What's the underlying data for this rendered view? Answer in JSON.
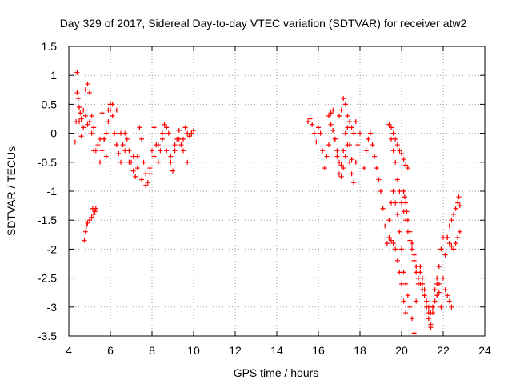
{
  "chart_data": {
    "type": "scatter",
    "title": "Day 329 of 2017, Sidereal Day-to-day VTEC variation (SDTVAR) for receiver atw2",
    "xlabel": "GPS time / hours",
    "ylabel": "SDTVAR / TECUs",
    "xlim": [
      4,
      24
    ],
    "ylim": [
      -3.5,
      1.5
    ],
    "xticks": [
      4,
      6,
      8,
      10,
      12,
      14,
      16,
      18,
      20,
      22,
      24
    ],
    "yticks": [
      -3.5,
      -3,
      -2.5,
      -2,
      -1.5,
      -1,
      -0.5,
      0,
      0.5,
      1,
      1.5
    ],
    "xtick_labels": [
      "4",
      "6",
      "8",
      "10",
      "12",
      "14",
      "16",
      "18",
      "20",
      "22",
      "24"
    ],
    "ytick_labels": [
      "-3.5",
      "-3",
      "-2.5",
      "-2",
      "-1.5",
      "-1",
      "-0.5",
      "0",
      "0.5",
      "1",
      "1.5"
    ],
    "grid": true,
    "marker": "+",
    "color": "#ff0000",
    "series": [
      {
        "name": "SDTVAR",
        "x": [
          4.3,
          4.35,
          4.4,
          4.45,
          4.5,
          4.55,
          4.6,
          4.7,
          4.8,
          4.9,
          5.0,
          5.1,
          5.2,
          5.3,
          5.4,
          5.5,
          5.6,
          5.7,
          5.8,
          5.9,
          6.0,
          6.1,
          6.2,
          6.3,
          6.4,
          6.5,
          6.6,
          6.7,
          6.8,
          6.9,
          7.0,
          7.1,
          7.2,
          7.3,
          7.4,
          7.5,
          7.6,
          7.7,
          7.8,
          7.9,
          8.0,
          8.1,
          8.2,
          8.3,
          8.4,
          8.5,
          8.6,
          8.7,
          8.8,
          8.9,
          9.0,
          9.1,
          9.2,
          9.3,
          9.4,
          9.5,
          9.6,
          9.7,
          9.8,
          9.9,
          10.0,
          4.4,
          4.5,
          4.6,
          4.7,
          4.8,
          4.9,
          5.0,
          5.1,
          5.2,
          4.75,
          4.8,
          4.85,
          4.9,
          5.0,
          5.1,
          5.15,
          5.2,
          5.25,
          5.3,
          5.5,
          5.6,
          5.7,
          5.8,
          5.9,
          6.0,
          6.1,
          6.3,
          6.5,
          6.7,
          6.9,
          7.1,
          7.3,
          7.5,
          7.7,
          7.9,
          8.1,
          8.3,
          8.5,
          8.7,
          8.9,
          9.1,
          9.3,
          9.5,
          9.7,
          9.9,
          15.5,
          15.6,
          15.7,
          15.8,
          15.9,
          16.0,
          16.1,
          16.2,
          16.3,
          16.4,
          16.5,
          16.6,
          16.7,
          16.8,
          16.9,
          17.0,
          17.1,
          17.2,
          17.3,
          17.4,
          17.5,
          17.6,
          17.7,
          17.8,
          17.9,
          18.0,
          17.0,
          17.1,
          17.2,
          17.3,
          17.4,
          17.5,
          17.6,
          17.7,
          17.8,
          16.5,
          16.6,
          16.7,
          16.8,
          16.9,
          17.0,
          17.1,
          17.2,
          17.3,
          17.4,
          17.5,
          17.6,
          17.7,
          18.2,
          18.3,
          18.4,
          18.5,
          18.6,
          18.7,
          18.8,
          18.9,
          19.0,
          19.1,
          19.2,
          19.3,
          19.4,
          19.5,
          19.6,
          19.7,
          19.8,
          19.9,
          20.0,
          20.1,
          20.2,
          20.3,
          20.4,
          20.5,
          20.6,
          20.7,
          20.8,
          20.9,
          21.0,
          21.1,
          21.2,
          21.3,
          21.4,
          21.5,
          21.6,
          21.7,
          21.8,
          21.9,
          19.4,
          19.5,
          19.6,
          19.7,
          19.8,
          19.9,
          20.0,
          20.1,
          20.2,
          20.3,
          19.5,
          19.6,
          19.7,
          19.8,
          19.9,
          20.0,
          20.1,
          20.2,
          20.3,
          20.4,
          20.5,
          20.6,
          20.7,
          20.8,
          20.9,
          21.0,
          21.1,
          21.2,
          21.3,
          21.4,
          21.5,
          21.6,
          21.7,
          21.8,
          19.4,
          19.5,
          19.6,
          19.7,
          19.8,
          19.9,
          20.0,
          20.1,
          20.2,
          20.1,
          20.15,
          20.2,
          20.25,
          20.3,
          20.4,
          20.5,
          20.6,
          20.7,
          20.8,
          20.9,
          21.0,
          21.1,
          21.2,
          21.3,
          21.4,
          21.5,
          21.6,
          21.7,
          21.8,
          21.9,
          22.0,
          22.0,
          22.1,
          22.2,
          22.3,
          22.4,
          22.5,
          22.6,
          22.7,
          22.75,
          22.8,
          22.2,
          22.3,
          22.4,
          22.5,
          22.6,
          22.7,
          22.8,
          22.1,
          22.2,
          22.3,
          22.4
        ],
        "y": [
          -0.15,
          0.2,
          1.05,
          0.6,
          0.45,
          0.35,
          0.25,
          0.4,
          0.75,
          0.85,
          0.7,
          0.3,
          0.1,
          -0.3,
          -0.2,
          -0.1,
          0.35,
          -0.1,
          -0.4,
          0.4,
          0.5,
          0.3,
          0.0,
          -0.2,
          -0.35,
          -0.5,
          -0.2,
          0.0,
          -0.1,
          -0.3,
          -0.5,
          -0.65,
          -0.75,
          -0.4,
          0.1,
          -0.1,
          -0.5,
          -0.7,
          -0.85,
          -0.7,
          -0.3,
          0.1,
          -0.2,
          -0.5,
          -0.3,
          0.0,
          0.15,
          0.1,
          0.0,
          -0.4,
          -0.65,
          -0.3,
          -0.1,
          0.05,
          -0.2,
          -0.1,
          0.1,
          0.0,
          -0.05,
          0.0,
          0.05,
          0.7,
          0.2,
          -0.05,
          0.1,
          0.3,
          0.15,
          0.2,
          0.0,
          -0.3,
          -1.85,
          -1.7,
          -1.6,
          -1.55,
          -1.5,
          -1.45,
          -1.3,
          -1.4,
          -1.35,
          -1.3,
          -0.5,
          -0.3,
          -0.1,
          0.0,
          0.2,
          0.4,
          0.5,
          0.4,
          0.0,
          -0.3,
          -0.5,
          -0.4,
          -0.6,
          -0.8,
          -0.9,
          -0.6,
          -0.4,
          -0.2,
          -0.1,
          -0.3,
          -0.5,
          -0.2,
          -0.1,
          -0.3,
          -0.5,
          0.0,
          0.2,
          0.25,
          0.15,
          0.0,
          -0.15,
          0.1,
          0.0,
          -0.3,
          -0.6,
          -0.4,
          -0.2,
          0.15,
          0.05,
          -0.1,
          -0.4,
          -0.7,
          -0.55,
          -0.3,
          0.0,
          0.1,
          -0.2,
          -0.45,
          -0.85,
          -0.5,
          -0.2,
          0.0,
          0.3,
          0.4,
          0.6,
          0.5,
          0.3,
          0.2,
          0.1,
          0.0,
          0.2,
          0.3,
          0.35,
          0.4,
          -0.1,
          -0.3,
          -0.5,
          -0.75,
          -0.6,
          -0.4,
          -0.2,
          -0.5,
          -0.7,
          -0.85,
          -0.6,
          -0.3,
          -0.1,
          0.0,
          -0.2,
          -0.4,
          -0.6,
          -0.8,
          -1.0,
          -1.3,
          -1.6,
          -1.9,
          -1.5,
          -1.2,
          -1.0,
          -1.2,
          -1.4,
          -1.7,
          -2.0,
          -2.4,
          -2.6,
          -2.8,
          -3.0,
          -3.2,
          -3.45,
          -2.9,
          -2.6,
          -2.3,
          -2.5,
          -2.7,
          -2.9,
          -3.1,
          -3.35,
          -3.0,
          -2.7,
          -2.5,
          -2.75,
          -3.0,
          0.15,
          0.1,
          0.0,
          -0.1,
          -0.2,
          -0.3,
          -0.35,
          -0.45,
          -0.55,
          -0.6,
          -0.1,
          -0.3,
          -0.5,
          -0.8,
          -1.0,
          -1.2,
          -1.35,
          -1.5,
          -1.7,
          -1.85,
          -2.0,
          -2.2,
          -2.4,
          -2.5,
          -2.6,
          -2.7,
          -2.8,
          -2.9,
          -3.0,
          -3.1,
          -3.0,
          -2.9,
          -2.8,
          -2.6,
          -1.8,
          -1.85,
          -1.9,
          -2.0,
          -2.2,
          -2.4,
          -2.6,
          -2.9,
          -3.1,
          -1.0,
          -1.1,
          -1.2,
          -1.35,
          -1.5,
          -1.7,
          -1.9,
          -2.1,
          -2.3,
          -2.5,
          -2.4,
          -2.6,
          -2.8,
          -3.0,
          -3.2,
          -3.3,
          -3.1,
          -2.9,
          -2.6,
          -2.3,
          -2.0,
          -1.8,
          -2.5,
          -2.1,
          -1.8,
          -1.6,
          -1.5,
          -1.4,
          -1.3,
          -1.2,
          -1.1,
          -1.25,
          -1.8,
          -1.9,
          -1.95,
          -2.0,
          -1.9,
          -1.8,
          -1.7,
          -2.7,
          -2.8,
          -2.9,
          -3.0
        ]
      }
    ]
  }
}
